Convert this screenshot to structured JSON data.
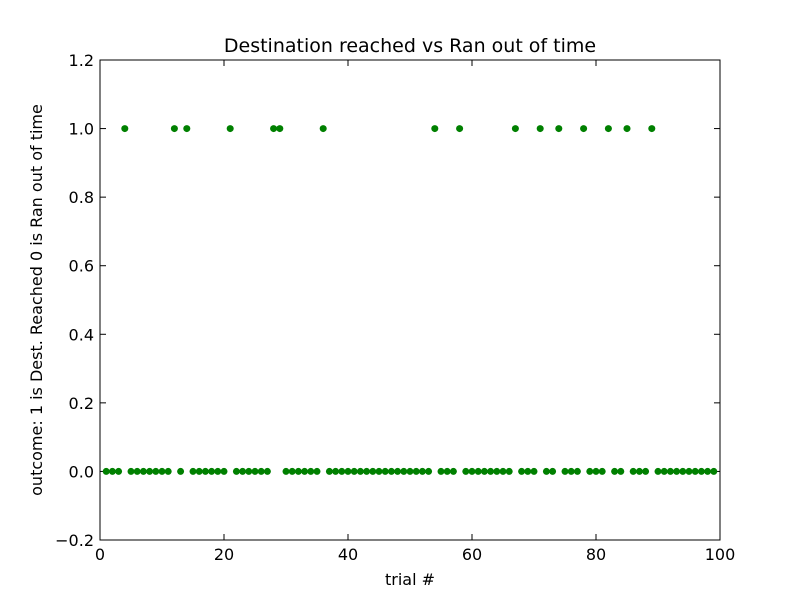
{
  "chart_data": {
    "type": "scatter",
    "title": "Destination reached vs Ran out of time",
    "xlabel": "trial #",
    "ylabel": "outcome: 1 is Dest. Reached 0 is Ran out of time",
    "xlim": [
      0,
      100
    ],
    "ylim": [
      -0.2,
      1.2
    ],
    "xticks": [
      0,
      20,
      40,
      60,
      80,
      100
    ],
    "xtick_labels": [
      "0",
      "20",
      "40",
      "60",
      "80",
      "100"
    ],
    "yticks": [
      -0.2,
      0.0,
      0.2,
      0.4,
      0.6,
      0.8,
      1.0,
      1.2
    ],
    "ytick_labels": [
      "−0.2",
      "0.0",
      "0.2",
      "0.4",
      "0.6",
      "0.8",
      "1.0",
      "1.2"
    ],
    "grid": false,
    "marker_color": "#008000",
    "x": [
      1,
      2,
      3,
      4,
      5,
      6,
      7,
      8,
      9,
      10,
      11,
      12,
      13,
      14,
      15,
      16,
      17,
      18,
      19,
      20,
      21,
      22,
      23,
      24,
      25,
      26,
      27,
      28,
      29,
      30,
      31,
      32,
      33,
      34,
      35,
      36,
      37,
      38,
      39,
      40,
      41,
      42,
      43,
      44,
      45,
      46,
      47,
      48,
      49,
      50,
      51,
      52,
      53,
      54,
      55,
      56,
      57,
      58,
      59,
      60,
      61,
      62,
      63,
      64,
      65,
      66,
      67,
      68,
      69,
      70,
      71,
      72,
      73,
      74,
      75,
      76,
      77,
      78,
      79,
      80,
      81,
      82,
      83,
      84,
      85,
      86,
      87,
      88,
      89,
      90,
      91,
      92,
      93,
      94,
      95,
      96,
      97,
      98,
      99
    ],
    "y": [
      0,
      0,
      0,
      1,
      0,
      0,
      0,
      0,
      0,
      0,
      0,
      1,
      0,
      1,
      0,
      0,
      0,
      0,
      0,
      0,
      1,
      0,
      0,
      0,
      0,
      0,
      0,
      1,
      1,
      0,
      0,
      0,
      0,
      0,
      0,
      1,
      0,
      0,
      0,
      0,
      0,
      0,
      0,
      0,
      0,
      0,
      0,
      0,
      0,
      0,
      0,
      0,
      0,
      1,
      0,
      0,
      0,
      1,
      0,
      0,
      0,
      0,
      0,
      0,
      0,
      0,
      1,
      0,
      0,
      0,
      1,
      0,
      0,
      1,
      0,
      0,
      0,
      1,
      0,
      0,
      0,
      1,
      0,
      0,
      1,
      0,
      0,
      0,
      1,
      0,
      0,
      0,
      0,
      0,
      0,
      0,
      0,
      0,
      0
    ]
  }
}
